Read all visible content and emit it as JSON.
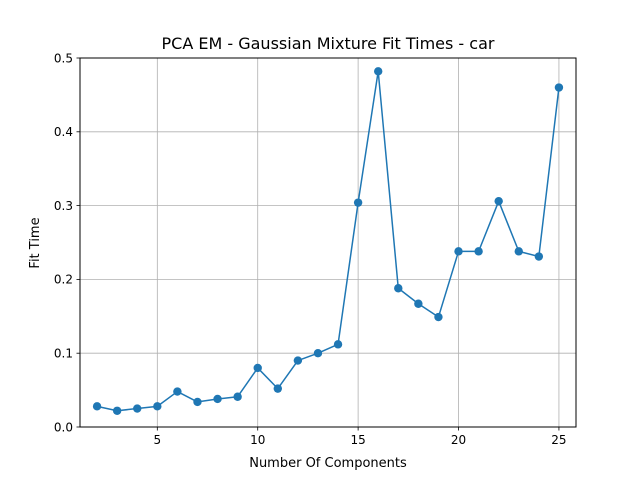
{
  "chart_data": {
    "type": "line",
    "title": "PCA EM - Gaussian Mixture Fit Times - car",
    "xlabel": "Number Of Components",
    "ylabel": "Fit Time",
    "xlim": [
      1.15,
      25.85
    ],
    "ylim": [
      0.0,
      0.5
    ],
    "xticks": [
      5,
      10,
      15,
      20,
      25
    ],
    "yticks": [
      0.0,
      0.1,
      0.2,
      0.3,
      0.4,
      0.5
    ],
    "xtick_labels": [
      "5",
      "10",
      "15",
      "20",
      "25"
    ],
    "ytick_labels": [
      "0.0",
      "0.1",
      "0.2",
      "0.3",
      "0.4",
      "0.5"
    ],
    "grid": true,
    "legend": false,
    "color": "#1f77b4",
    "series": [
      {
        "x": [
          2,
          3,
          4,
          5,
          6,
          7,
          8,
          9,
          10,
          11,
          12,
          13,
          14,
          15,
          16,
          17,
          18,
          19,
          20,
          21,
          22,
          23,
          24,
          25
        ],
        "values": [
          0.028,
          0.022,
          0.025,
          0.028,
          0.048,
          0.034,
          0.038,
          0.041,
          0.08,
          0.052,
          0.09,
          0.1,
          0.112,
          0.304,
          0.482,
          0.188,
          0.167,
          0.149,
          0.238,
          0.238,
          0.306,
          0.238,
          0.231,
          0.46
        ]
      }
    ]
  }
}
